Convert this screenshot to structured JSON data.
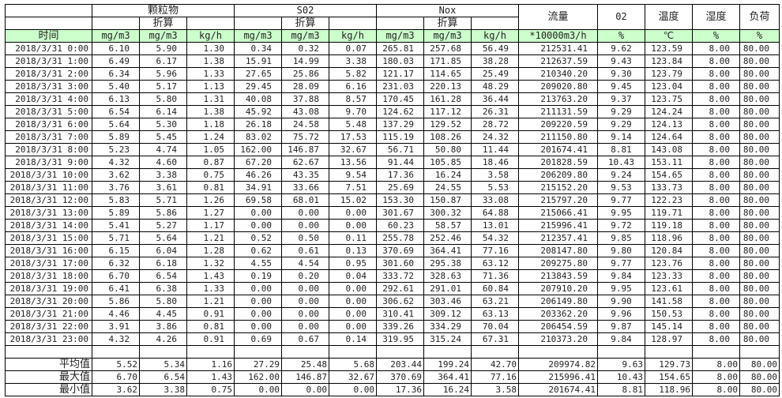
{
  "header": {
    "groups": {
      "particulate": "颗粒物",
      "so2": "S02",
      "nox": "Nox"
    },
    "converted": "折算",
    "flow": "流量",
    "o2": "02",
    "temp": "温度",
    "humidity": "湿度",
    "load": "负荷",
    "time": "时间",
    "units": [
      "mg/m3",
      "mg/m3",
      "kg/h",
      "mg/m3",
      "mg/m3",
      "kg/h",
      "mg/m3",
      "mg/m3",
      "kg/h",
      "*10000m3/h",
      "%",
      "℃",
      "%",
      "%"
    ]
  },
  "colors": {
    "header_green": "#ccffcc"
  },
  "rows": [
    [
      "2018/3/31 0:00",
      "6.10",
      "5.90",
      "1.30",
      "0.34",
      "0.32",
      "0.07",
      "265.81",
      "257.68",
      "56.49",
      "212531.41",
      "9.62",
      "123.59",
      "8.00",
      "80.00"
    ],
    [
      "2018/3/31 1:00",
      "6.49",
      "6.17",
      "1.38",
      "15.91",
      "14.99",
      "3.38",
      "180.03",
      "171.85",
      "38.28",
      "212637.59",
      "9.43",
      "123.84",
      "8.00",
      "80.00"
    ],
    [
      "2018/3/31 2:00",
      "6.34",
      "5.96",
      "1.33",
      "27.65",
      "25.86",
      "5.82",
      "121.17",
      "114.65",
      "25.49",
      "210340.20",
      "9.30",
      "123.79",
      "8.00",
      "80.00"
    ],
    [
      "2018/3/31 3:00",
      "5.40",
      "5.17",
      "1.13",
      "29.45",
      "28.09",
      "6.16",
      "231.03",
      "220.13",
      "48.29",
      "209020.80",
      "9.45",
      "123.04",
      "8.00",
      "80.00"
    ],
    [
      "2018/3/31 4:00",
      "6.13",
      "5.80",
      "1.31",
      "40.08",
      "37.88",
      "8.57",
      "170.45",
      "161.28",
      "36.44",
      "213763.20",
      "9.37",
      "123.75",
      "8.00",
      "80.00"
    ],
    [
      "2018/3/31 5:00",
      "6.54",
      "6.14",
      "1.38",
      "45.92",
      "43.08",
      "9.70",
      "124.62",
      "117.12",
      "26.31",
      "211131.59",
      "9.29",
      "124.24",
      "8.00",
      "80.00"
    ],
    [
      "2018/3/31 6:00",
      "5.64",
      "5.30",
      "1.18",
      "26.18",
      "24.58",
      "5.48",
      "137.29",
      "129.52",
      "28.72",
      "209220.59",
      "9.29",
      "124.13",
      "8.00",
      "80.00"
    ],
    [
      "2018/3/31 7:00",
      "5.89",
      "5.45",
      "1.24",
      "83.02",
      "75.72",
      "17.53",
      "115.19",
      "108.26",
      "24.32",
      "211150.80",
      "9.14",
      "124.64",
      "8.00",
      "80.00"
    ],
    [
      "2018/3/31 8:00",
      "5.23",
      "4.74",
      "1.05",
      "162.00",
      "146.87",
      "32.67",
      "56.71",
      "50.80",
      "11.44",
      "201674.41",
      "8.81",
      "143.08",
      "8.00",
      "80.00"
    ],
    [
      "2018/3/31 9:00",
      "4.32",
      "4.60",
      "0.87",
      "67.20",
      "62.67",
      "13.56",
      "91.44",
      "105.85",
      "18.46",
      "201828.59",
      "10.43",
      "153.11",
      "8.00",
      "80.00"
    ],
    [
      "2018/3/31 10:00",
      "3.62",
      "3.38",
      "0.75",
      "46.26",
      "43.35",
      "9.54",
      "17.36",
      "16.24",
      "3.58",
      "206209.80",
      "9.24",
      "154.65",
      "8.00",
      "80.00"
    ],
    [
      "2018/3/31 11:00",
      "3.76",
      "3.61",
      "0.81",
      "34.91",
      "33.66",
      "7.51",
      "25.69",
      "24.55",
      "5.53",
      "215152.20",
      "9.53",
      "133.73",
      "8.00",
      "80.00"
    ],
    [
      "2018/3/31 12:00",
      "5.83",
      "5.71",
      "1.26",
      "69.58",
      "68.01",
      "15.02",
      "153.30",
      "150.87",
      "33.08",
      "215797.20",
      "9.77",
      "122.23",
      "8.00",
      "80.00"
    ],
    [
      "2018/3/31 13:00",
      "5.89",
      "5.86",
      "1.27",
      "0.00",
      "0.00",
      "0.00",
      "301.67",
      "300.32",
      "64.88",
      "215066.41",
      "9.95",
      "119.71",
      "8.00",
      "80.00"
    ],
    [
      "2018/3/31 14:00",
      "5.41",
      "5.27",
      "1.17",
      "0.00",
      "0.00",
      "0.00",
      "60.23",
      "58.57",
      "13.01",
      "215996.41",
      "9.72",
      "119.18",
      "8.00",
      "80.00"
    ],
    [
      "2018/3/31 15:00",
      "5.71",
      "5.64",
      "1.21",
      "0.52",
      "0.50",
      "0.11",
      "255.78",
      "252.46",
      "54.32",
      "212357.41",
      "9.85",
      "118.96",
      "8.00",
      "80.00"
    ],
    [
      "2018/3/31 16:00",
      "6.15",
      "6.04",
      "1.28",
      "0.62",
      "0.61",
      "0.13",
      "370.69",
      "364.41",
      "77.16",
      "208147.80",
      "9.80",
      "120.84",
      "8.00",
      "80.00"
    ],
    [
      "2018/3/31 17:00",
      "6.32",
      "6.18",
      "1.32",
      "4.55",
      "4.54",
      "0.95",
      "301.60",
      "295.38",
      "63.12",
      "209275.80",
      "9.77",
      "123.76",
      "8.00",
      "80.00"
    ],
    [
      "2018/3/31 18:00",
      "6.70",
      "6.54",
      "1.43",
      "0.19",
      "0.20",
      "0.04",
      "333.72",
      "328.63",
      "71.36",
      "213843.59",
      "9.84",
      "123.33",
      "8.00",
      "80.00"
    ],
    [
      "2018/3/31 19:00",
      "6.41",
      "6.38",
      "1.33",
      "0.00",
      "0.00",
      "0.00",
      "292.61",
      "291.01",
      "60.84",
      "207910.20",
      "9.95",
      "123.61",
      "8.00",
      "80.00"
    ],
    [
      "2018/3/31 20:00",
      "5.86",
      "5.80",
      "1.21",
      "0.00",
      "0.00",
      "0.00",
      "306.62",
      "303.46",
      "63.21",
      "206149.80",
      "9.90",
      "141.58",
      "8.00",
      "80.00"
    ],
    [
      "2018/3/31 21:00",
      "4.46",
      "4.45",
      "0.91",
      "0.00",
      "0.00",
      "0.00",
      "310.41",
      "309.12",
      "63.13",
      "203362.20",
      "9.96",
      "150.53",
      "8.00",
      "80.00"
    ],
    [
      "2018/3/31 22:00",
      "3.91",
      "3.86",
      "0.81",
      "0.00",
      "0.00",
      "0.00",
      "339.26",
      "334.29",
      "70.04",
      "206454.59",
      "9.87",
      "145.14",
      "8.00",
      "80.00"
    ],
    [
      "2018/3/31 23:00",
      "4.32",
      "4.26",
      "0.91",
      "0.69",
      "0.67",
      "0.14",
      "319.95",
      "315.24",
      "67.31",
      "210373.20",
      "9.84",
      "128.97",
      "8.00",
      "80.00"
    ]
  ],
  "summary": [
    [
      "平均值",
      "5.52",
      "5.34",
      "1.16",
      "27.29",
      "25.48",
      "5.68",
      "203.44",
      "199.24",
      "42.70",
      "209974.82",
      "9.63",
      "129.73",
      "8.00",
      "80.00"
    ],
    [
      "最大值",
      "6.70",
      "6.54",
      "1.43",
      "162.00",
      "146.87",
      "32.67",
      "370.69",
      "364.41",
      "77.16",
      "215996.41",
      "10.43",
      "154.65",
      "8.00",
      "80.00"
    ],
    [
      "最小值",
      "3.62",
      "3.38",
      "0.75",
      "0.00",
      "0.00",
      "0.00",
      "17.36",
      "16.24",
      "3.58",
      "201674.41",
      "8.81",
      "118.96",
      "8.00",
      "80.00"
    ]
  ]
}
